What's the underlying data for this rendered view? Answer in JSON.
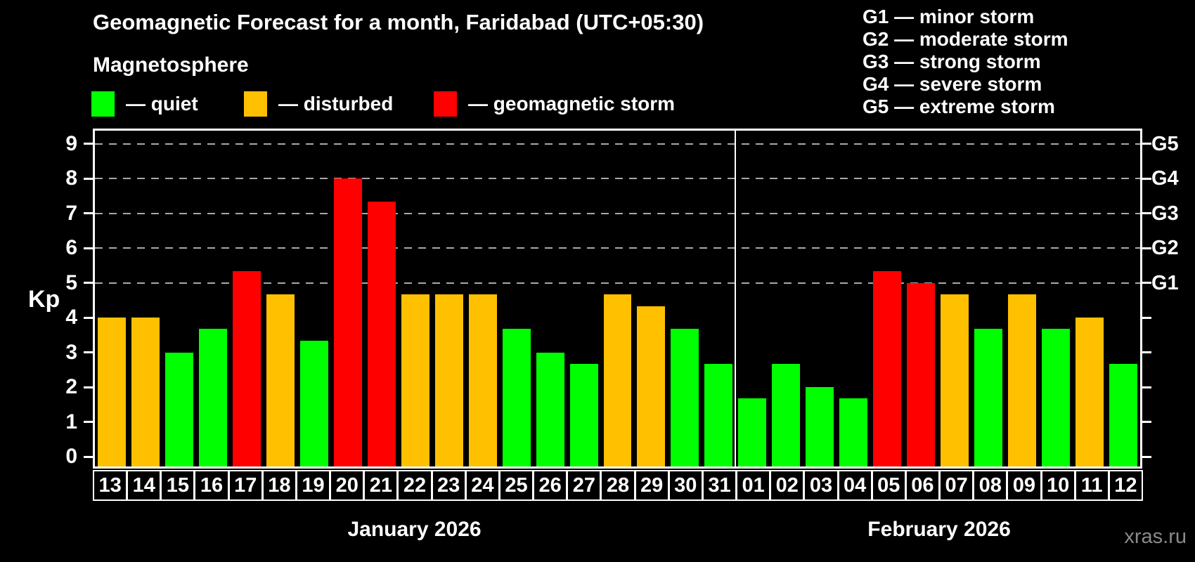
{
  "header": {
    "title": "Geomagnetic Forecast for a month, Faridabad (UTC+05:30)",
    "subtitle": "Magnetosphere"
  },
  "legend": {
    "position": "top-left",
    "items": [
      {
        "key": "quiet",
        "label": "— quiet",
        "color": "#00ff00"
      },
      {
        "key": "disturbed",
        "label": "— disturbed",
        "color": "#ffc000"
      },
      {
        "key": "storm",
        "label": "— geomagnetic storm",
        "color": "#ff0000"
      }
    ]
  },
  "g_legend": {
    "items": [
      "G1 — minor storm",
      "G2 — moderate storm",
      "G3 — strong storm",
      "G4 — severe storm",
      "G5 — extreme storm"
    ]
  },
  "watermark": "xras.ru",
  "chart_data": {
    "type": "bar",
    "ylabel": "Kp",
    "ylim": [
      0,
      9.4
    ],
    "y_ticks": [
      0,
      1,
      2,
      3,
      4,
      5,
      6,
      7,
      8,
      9
    ],
    "grid": "dashed horizontal lines at Kp 5–9 only",
    "bar_baseline": "bars start at axis bottom",
    "g_levels": [
      {
        "kp": 5,
        "label": "G1"
      },
      {
        "kp": 6,
        "label": "G2"
      },
      {
        "kp": 7,
        "label": "G3"
      },
      {
        "kp": 8,
        "label": "G4"
      },
      {
        "kp": 9,
        "label": "G5"
      }
    ],
    "status_colors": {
      "quiet": "#00ff00",
      "disturbed": "#ffc000",
      "storm": "#ff0000"
    },
    "months": [
      {
        "label": "January 2026",
        "days": [
          {
            "day": "13",
            "kp": 4.0,
            "status": "disturbed"
          },
          {
            "day": "14",
            "kp": 4.0,
            "status": "disturbed"
          },
          {
            "day": "15",
            "kp": 3.0,
            "status": "quiet"
          },
          {
            "day": "16",
            "kp": 3.67,
            "status": "quiet"
          },
          {
            "day": "17",
            "kp": 5.33,
            "status": "storm"
          },
          {
            "day": "18",
            "kp": 4.67,
            "status": "disturbed"
          },
          {
            "day": "19",
            "kp": 3.33,
            "status": "quiet"
          },
          {
            "day": "20",
            "kp": 8.0,
            "status": "storm"
          },
          {
            "day": "21",
            "kp": 7.33,
            "status": "storm"
          },
          {
            "day": "22",
            "kp": 4.67,
            "status": "disturbed"
          },
          {
            "day": "23",
            "kp": 4.67,
            "status": "disturbed"
          },
          {
            "day": "24",
            "kp": 4.67,
            "status": "disturbed"
          },
          {
            "day": "25",
            "kp": 3.67,
            "status": "quiet"
          },
          {
            "day": "26",
            "kp": 3.0,
            "status": "quiet"
          },
          {
            "day": "27",
            "kp": 2.67,
            "status": "quiet"
          },
          {
            "day": "28",
            "kp": 4.67,
            "status": "disturbed"
          },
          {
            "day": "29",
            "kp": 4.33,
            "status": "disturbed"
          },
          {
            "day": "30",
            "kp": 3.67,
            "status": "quiet"
          },
          {
            "day": "31",
            "kp": 2.67,
            "status": "quiet"
          }
        ]
      },
      {
        "label": "February 2026",
        "days": [
          {
            "day": "01",
            "kp": 1.67,
            "status": "quiet"
          },
          {
            "day": "02",
            "kp": 2.67,
            "status": "quiet"
          },
          {
            "day": "03",
            "kp": 2.0,
            "status": "quiet"
          },
          {
            "day": "04",
            "kp": 1.67,
            "status": "quiet"
          },
          {
            "day": "05",
            "kp": 5.33,
            "status": "storm"
          },
          {
            "day": "06",
            "kp": 5.0,
            "status": "storm"
          },
          {
            "day": "07",
            "kp": 4.67,
            "status": "disturbed"
          },
          {
            "day": "08",
            "kp": 3.67,
            "status": "quiet"
          },
          {
            "day": "09",
            "kp": 4.67,
            "status": "disturbed"
          },
          {
            "day": "10",
            "kp": 3.67,
            "status": "quiet"
          },
          {
            "day": "11",
            "kp": 4.0,
            "status": "disturbed"
          },
          {
            "day": "12",
            "kp": 2.67,
            "status": "quiet"
          }
        ]
      }
    ]
  }
}
